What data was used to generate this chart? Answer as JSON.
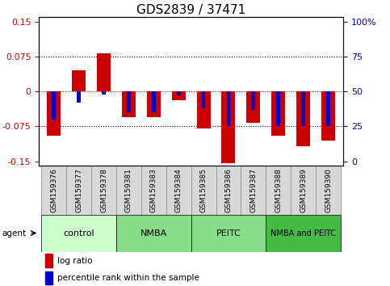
{
  "title": "GDS2839 / 37471",
  "samples": [
    "GSM159376",
    "GSM159377",
    "GSM159378",
    "GSM159381",
    "GSM159383",
    "GSM159384",
    "GSM159385",
    "GSM159386",
    "GSM159387",
    "GSM159388",
    "GSM159389",
    "GSM159390"
  ],
  "log_ratio": [
    -0.095,
    0.045,
    0.082,
    -0.055,
    -0.055,
    -0.018,
    -0.079,
    -0.155,
    -0.068,
    -0.095,
    -0.118,
    -0.105
  ],
  "percentile_rank": [
    30,
    42,
    48,
    35,
    35,
    47,
    38,
    25,
    37,
    25,
    25,
    25
  ],
  "ylim": [
    -0.16,
    0.16
  ],
  "yticks_left": [
    -0.15,
    -0.075,
    0,
    0.075,
    0.15
  ],
  "yticks_right": [
    0,
    25,
    50,
    75,
    100
  ],
  "hlines": [
    -0.075,
    0,
    0.075
  ],
  "bar_width": 0.55,
  "red_color": "#CC0000",
  "blue_color": "#0000CC",
  "agent_groups": [
    {
      "label": "control",
      "start": 0,
      "end": 3,
      "color": "#ccffcc"
    },
    {
      "label": "NMBA",
      "start": 3,
      "end": 6,
      "color": "#88dd88"
    },
    {
      "label": "PEITC",
      "start": 6,
      "end": 9,
      "color": "#88dd88"
    },
    {
      "label": "NMBA and PEITC",
      "start": 9,
      "end": 12,
      "color": "#44bb44"
    }
  ],
  "legend_red_label": "log ratio",
  "legend_blue_label": "percentile rank within the sample",
  "bg_color": "#ffffff",
  "tick_label_color_left": "#CC0000",
  "tick_label_color_right": "#0000CC",
  "title_fontsize": 11,
  "axis_fontsize": 8,
  "sample_fontsize": 6.5,
  "group_fontsize": 8,
  "group_fontsize_last": 7
}
